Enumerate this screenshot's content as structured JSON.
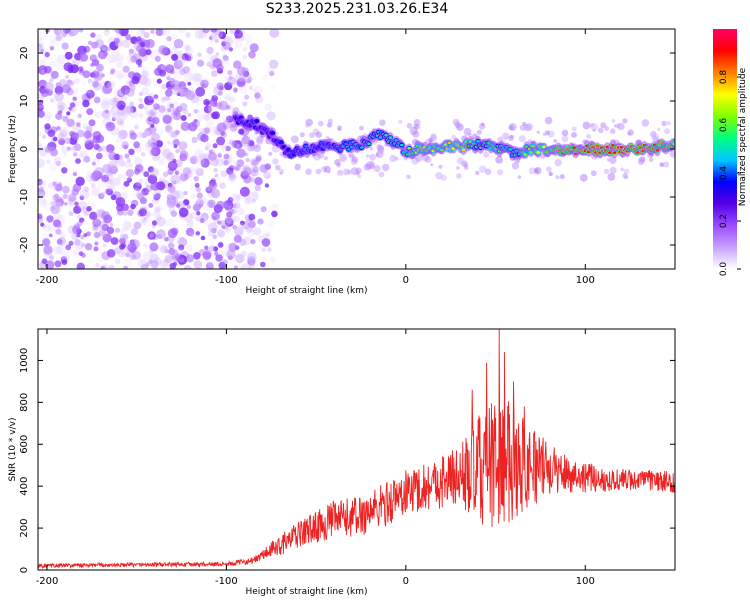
{
  "title": "S233.2025.231.03.26.E34",
  "chart_data": [
    {
      "type": "heatmap",
      "description_key": "spectrogram",
      "xlabel": "Height of straight line (km)",
      "ylabel": "Frequency (Hz)",
      "xlim": [
        -205,
        150
      ],
      "ylim": [
        -25,
        25
      ],
      "xticks": [
        -200,
        -100,
        0,
        100
      ],
      "yticks": [
        -20,
        -10,
        0,
        10,
        20
      ],
      "colorbar": {
        "label": "Normalized spectral amplitude",
        "range": [
          0.0,
          1.0
        ],
        "ticks": [
          0.0,
          0.2,
          0.4,
          0.6,
          0.8
        ],
        "tick_labels": [
          "0.0",
          "0.2",
          "0.4",
          "0.6",
          "0.8"
        ],
        "colormap": [
          "#ffffff",
          "#c8a0ff",
          "#9a4bff",
          "#5500e6",
          "#0000ff",
          "#00c8ff",
          "#00ff80",
          "#80ff00",
          "#ffff00",
          "#ff8000",
          "#ff0000",
          "#ff0066"
        ]
      },
      "noise_region_x": [
        -205,
        -85
      ],
      "noise_amplitude_range": [
        0.0,
        0.15
      ],
      "signal_ridge": [
        {
          "x": -95,
          "freq": 6,
          "amp": 0.3
        },
        {
          "x": -85,
          "freq": 5.5,
          "amp": 0.35
        },
        {
          "x": -75,
          "freq": 3,
          "amp": 0.3
        },
        {
          "x": -65,
          "freq": -1,
          "amp": 0.35
        },
        {
          "x": -55,
          "freq": 0,
          "amp": 0.4
        },
        {
          "x": -45,
          "freq": 0.5,
          "amp": 0.4
        },
        {
          "x": -35,
          "freq": 0.5,
          "amp": 0.45
        },
        {
          "x": -25,
          "freq": 1,
          "amp": 0.5
        },
        {
          "x": -15,
          "freq": 3,
          "amp": 0.5
        },
        {
          "x": -5,
          "freq": 1,
          "amp": 0.5
        },
        {
          "x": 0,
          "freq": -0.5,
          "amp": 0.6
        },
        {
          "x": 10,
          "freq": 0,
          "amp": 0.7
        },
        {
          "x": 20,
          "freq": 0.5,
          "amp": 0.7
        },
        {
          "x": 30,
          "freq": 0.5,
          "amp": 0.75
        },
        {
          "x": 40,
          "freq": 1,
          "amp": 0.55
        },
        {
          "x": 50,
          "freq": 0.5,
          "amp": 0.6
        },
        {
          "x": 60,
          "freq": -1,
          "amp": 0.5
        },
        {
          "x": 70,
          "freq": 0,
          "amp": 0.65
        },
        {
          "x": 80,
          "freq": 0,
          "amp": 0.8
        },
        {
          "x": 90,
          "freq": -0.5,
          "amp": 0.85
        },
        {
          "x": 100,
          "freq": 0,
          "amp": 0.9
        },
        {
          "x": 110,
          "freq": 0,
          "amp": 0.92
        },
        {
          "x": 120,
          "freq": 0,
          "amp": 0.95
        },
        {
          "x": 130,
          "freq": 0,
          "amp": 0.9
        },
        {
          "x": 140,
          "freq": 0.5,
          "amp": 0.85
        },
        {
          "x": 150,
          "freq": 1,
          "amp": 0.8
        }
      ]
    },
    {
      "type": "line",
      "xlabel": "Height of straight line (km)",
      "ylabel": "SNR (10 * v/v)",
      "xlim": [
        -205,
        150
      ],
      "ylim": [
        0,
        1150
      ],
      "xticks": [
        -200,
        -100,
        0,
        100
      ],
      "yticks": [
        0,
        200,
        400,
        600,
        800,
        1000
      ],
      "series": [
        {
          "name": "SNR",
          "color": "#ee2222",
          "envelope": [
            {
              "x": -205,
              "base": 20,
              "spread": 10
            },
            {
              "x": -150,
              "base": 25,
              "spread": 10
            },
            {
              "x": -100,
              "base": 28,
              "spread": 10
            },
            {
              "x": -85,
              "base": 45,
              "spread": 15
            },
            {
              "x": -70,
              "base": 120,
              "spread": 50
            },
            {
              "x": -55,
              "base": 190,
              "spread": 70
            },
            {
              "x": -40,
              "base": 240,
              "spread": 90
            },
            {
              "x": -25,
              "base": 260,
              "spread": 100
            },
            {
              "x": -10,
              "base": 320,
              "spread": 110
            },
            {
              "x": 0,
              "base": 370,
              "spread": 110
            },
            {
              "x": 15,
              "base": 410,
              "spread": 120
            },
            {
              "x": 30,
              "base": 450,
              "spread": 150
            },
            {
              "x": 40,
              "base": 470,
              "spread": 260
            },
            {
              "x": 50,
              "base": 500,
              "spread": 320
            },
            {
              "x": 60,
              "base": 520,
              "spread": 280
            },
            {
              "x": 70,
              "base": 500,
              "spread": 200
            },
            {
              "x": 80,
              "base": 480,
              "spread": 120
            },
            {
              "x": 95,
              "base": 450,
              "spread": 80
            },
            {
              "x": 110,
              "base": 430,
              "spread": 60
            },
            {
              "x": 130,
              "base": 430,
              "spread": 50
            },
            {
              "x": 150,
              "base": 420,
              "spread": 50
            }
          ],
          "peaks": [
            {
              "x": 37,
              "y": 860
            },
            {
              "x": 45,
              "y": 990
            },
            {
              "x": 52,
              "y": 1150
            },
            {
              "x": 55,
              "y": 1040
            },
            {
              "x": 60,
              "y": 900
            },
            {
              "x": 66,
              "y": 780
            }
          ]
        }
      ]
    }
  ]
}
